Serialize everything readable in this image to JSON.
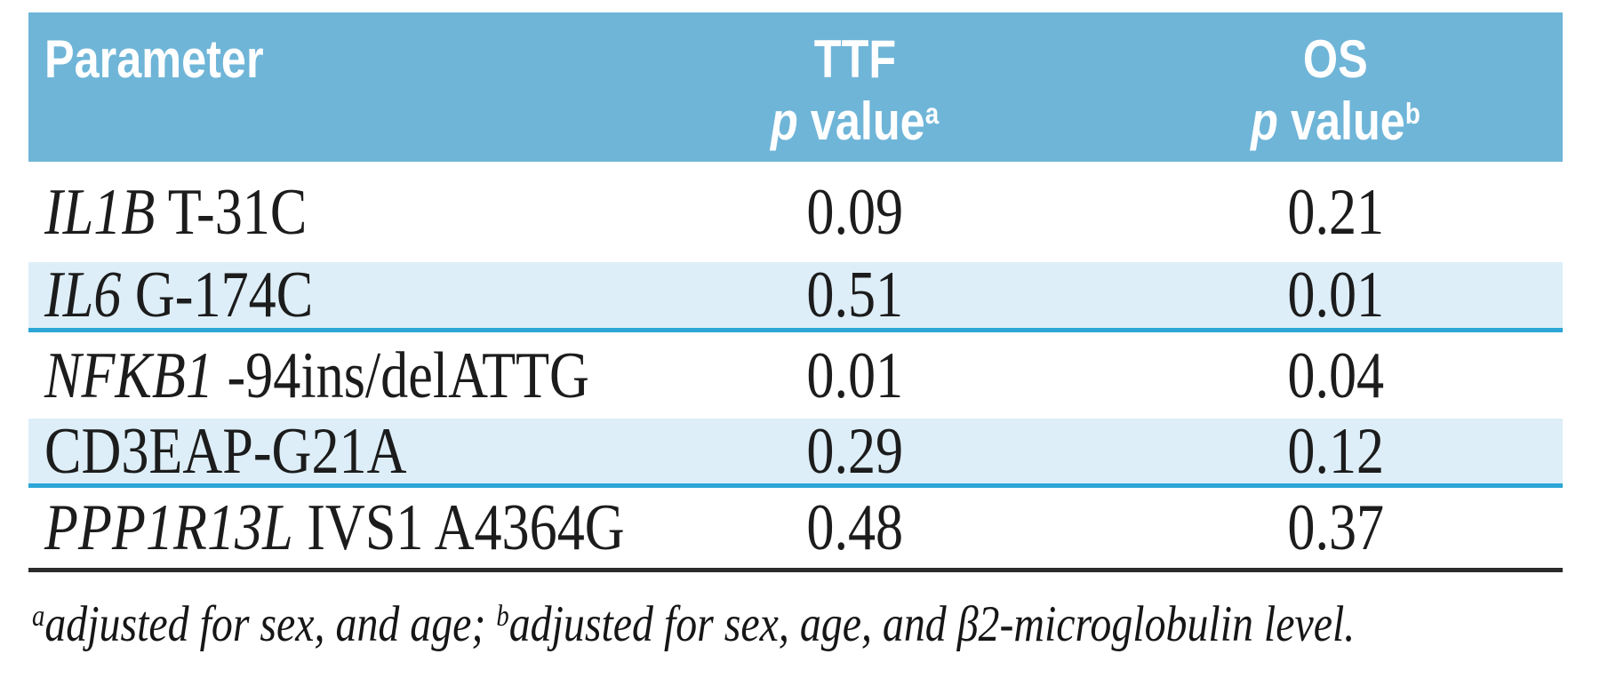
{
  "colors": {
    "header_bg": "#6fb5d8",
    "shaded_row_bg": "#ddeef8",
    "divider_rule": "#2ba6d6",
    "bottom_rule": "#2b2b2b",
    "header_text": "#ffffff",
    "body_text": "#1c1c1c"
  },
  "table": {
    "header": {
      "parameter": "Parameter",
      "ttf_line1": "TTF",
      "ttf_p": "p",
      "ttf_value": " value",
      "ttf_sup": "a",
      "os_line1": "OS",
      "os_p": "p",
      "os_value": " value",
      "os_sup": "b"
    },
    "rows": [
      {
        "gene": "IL1B",
        "rest": " T-31C",
        "ttf": "0.09",
        "os": "0.21"
      },
      {
        "gene": "IL6",
        "rest": " G-174C",
        "ttf": "0.51",
        "os": "0.01"
      },
      {
        "gene": "NFKB1",
        "rest": " -94ins/delATTG",
        "ttf": "0.01",
        "os": "0.04"
      },
      {
        "gene": "",
        "rest": "CD3EAP-G21A",
        "ttf": "0.29",
        "os": "0.12"
      },
      {
        "gene": "PPP1R13L",
        "rest": " IVS1 A4364G",
        "ttf": "0.48",
        "os": "0.37"
      }
    ],
    "footnote": {
      "sup_a": "a",
      "part_a": "adjusted for sex, and age; ",
      "sup_b": "b",
      "part_b": "adjusted for sex, age, and β2-microglobulin level."
    }
  },
  "chart_data": {
    "type": "table",
    "columns": [
      "Parameter",
      "TTF p value (a)",
      "OS p value (b)"
    ],
    "rows": [
      [
        "IL1B T-31C",
        0.09,
        0.21
      ],
      [
        "IL6 G-174C",
        0.51,
        0.01
      ],
      [
        "NFKB1 -94ins/delATTG",
        0.01,
        0.04
      ],
      [
        "CD3EAP-G21A",
        0.29,
        0.12
      ],
      [
        "PPP1R13L IVS1 A4364G",
        0.48,
        0.37
      ]
    ],
    "footnotes": {
      "a": "adjusted for sex, and age",
      "b": "adjusted for sex, age, and β2-microglobulin level"
    }
  }
}
